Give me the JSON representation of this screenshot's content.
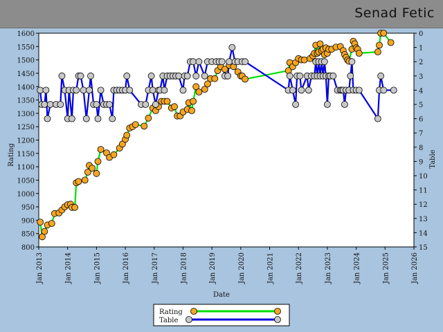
{
  "header": {
    "name": "Senad Fetic"
  },
  "chart_data": {
    "type": "line",
    "title": "Senad Fetic",
    "xlabel": "Date",
    "ylabel_left": "Rating",
    "ylabel_right": "Table",
    "x_tick_labels": [
      "Jan 2013",
      "Jan 2014",
      "Jan 2015",
      "Jan 2016",
      "Jan 2017",
      "Jan 2018",
      "Jan 2019",
      "Jan 2020",
      "Jan 2021",
      "Jan 2022",
      "Jan 2023",
      "Jan 2024",
      "Jan 2025",
      "Jan 2026"
    ],
    "xlim": [
      2013.0,
      2026.0
    ],
    "ylim_left": [
      800,
      1600
    ],
    "y_ticks_left": [
      800,
      850,
      900,
      950,
      1000,
      1050,
      1100,
      1150,
      1200,
      1250,
      1300,
      1350,
      1400,
      1450,
      1500,
      1550,
      1600
    ],
    "ylim_right": [
      15,
      0
    ],
    "y_ticks_right": [
      0,
      1,
      2,
      3,
      4,
      5,
      6,
      7,
      8,
      9,
      10,
      11,
      12,
      13,
      14,
      15
    ],
    "grid": false,
    "legend": "bottom-center",
    "colors": {
      "rating_line": "#00e000",
      "rating_marker": "#f5a623",
      "table_line": "#0000dd",
      "table_marker": "#c8c8c8"
    },
    "series": [
      {
        "name": "Rating",
        "axis": "left",
        "points": [
          [
            2013.05,
            893
          ],
          [
            2013.12,
            838
          ],
          [
            2013.2,
            858
          ],
          [
            2013.3,
            882
          ],
          [
            2013.45,
            888
          ],
          [
            2013.55,
            925
          ],
          [
            2013.7,
            927
          ],
          [
            2013.8,
            938
          ],
          [
            2013.9,
            950
          ],
          [
            2014.0,
            958
          ],
          [
            2014.1,
            960
          ],
          [
            2014.15,
            948
          ],
          [
            2014.25,
            948
          ],
          [
            2014.3,
            1040
          ],
          [
            2014.38,
            1045
          ],
          [
            2014.6,
            1050
          ],
          [
            2014.7,
            1080
          ],
          [
            2014.75,
            1105
          ],
          [
            2014.85,
            1095
          ],
          [
            2015.0,
            1075
          ],
          [
            2015.05,
            1120
          ],
          [
            2015.15,
            1165
          ],
          [
            2015.35,
            1152
          ],
          [
            2015.45,
            1135
          ],
          [
            2015.6,
            1145
          ],
          [
            2015.8,
            1170
          ],
          [
            2015.9,
            1185
          ],
          [
            2016.0,
            1203
          ],
          [
            2016.05,
            1218
          ],
          [
            2016.15,
            1245
          ],
          [
            2016.25,
            1250
          ],
          [
            2016.35,
            1258
          ],
          [
            2016.65,
            1252
          ],
          [
            2016.8,
            1282
          ],
          [
            2016.95,
            1320
          ],
          [
            2017.05,
            1310
          ],
          [
            2017.15,
            1325
          ],
          [
            2017.25,
            1345
          ],
          [
            2017.35,
            1345
          ],
          [
            2017.45,
            1345
          ],
          [
            2017.6,
            1320
          ],
          [
            2017.7,
            1325
          ],
          [
            2017.8,
            1290
          ],
          [
            2017.9,
            1290
          ],
          [
            2018.0,
            1305
          ],
          [
            2018.15,
            1315
          ],
          [
            2018.2,
            1340
          ],
          [
            2018.3,
            1310
          ],
          [
            2018.35,
            1345
          ],
          [
            2018.45,
            1400
          ],
          [
            2018.55,
            1380
          ],
          [
            2018.75,
            1390
          ],
          [
            2018.85,
            1410
          ],
          [
            2018.95,
            1430
          ],
          [
            2019.1,
            1430
          ],
          [
            2019.2,
            1460
          ],
          [
            2019.3,
            1475
          ],
          [
            2019.45,
            1465
          ],
          [
            2019.6,
            1480
          ],
          [
            2019.75,
            1475
          ],
          [
            2019.9,
            1455
          ],
          [
            2020.0,
            1440
          ],
          [
            2020.05,
            1440
          ],
          [
            2020.15,
            1428
          ],
          [
            2021.65,
            1460
          ],
          [
            2021.7,
            1490
          ],
          [
            2021.8,
            1475
          ],
          [
            2021.9,
            1490
          ],
          [
            2022.0,
            1505
          ],
          [
            2022.1,
            1500
          ],
          [
            2022.2,
            1500
          ],
          [
            2022.4,
            1505
          ],
          [
            2022.5,
            1515
          ],
          [
            2022.55,
            1525
          ],
          [
            2022.6,
            1555
          ],
          [
            2022.65,
            1525
          ],
          [
            2022.7,
            1530
          ],
          [
            2022.75,
            1560
          ],
          [
            2022.8,
            1535
          ],
          [
            2022.85,
            1540
          ],
          [
            2022.9,
            1520
          ],
          [
            2022.95,
            1545
          ],
          [
            2023.0,
            1525
          ],
          [
            2023.05,
            1540
          ],
          [
            2023.15,
            1540
          ],
          [
            2023.3,
            1548
          ],
          [
            2023.45,
            1550
          ],
          [
            2023.55,
            1535
          ],
          [
            2023.6,
            1520
          ],
          [
            2023.65,
            1510
          ],
          [
            2023.7,
            1500
          ],
          [
            2023.75,
            1495
          ],
          [
            2023.85,
            1540
          ],
          [
            2023.9,
            1570
          ],
          [
            2023.95,
            1560
          ],
          [
            2024.0,
            1545
          ],
          [
            2024.05,
            1540
          ],
          [
            2024.1,
            1525
          ],
          [
            2024.75,
            1530
          ],
          [
            2024.8,
            1555
          ],
          [
            2024.85,
            1600
          ],
          [
            2024.95,
            1600
          ],
          [
            2025.2,
            1565
          ]
        ]
      },
      {
        "name": "Table",
        "axis": "right",
        "points": [
          [
            2013.05,
            4
          ],
          [
            2013.1,
            5
          ],
          [
            2013.2,
            5
          ],
          [
            2013.25,
            4
          ],
          [
            2013.3,
            6
          ],
          [
            2013.4,
            5
          ],
          [
            2013.6,
            5
          ],
          [
            2013.75,
            5
          ],
          [
            2013.8,
            3
          ],
          [
            2013.9,
            4
          ],
          [
            2014.0,
            6
          ],
          [
            2014.05,
            4
          ],
          [
            2014.15,
            6
          ],
          [
            2014.2,
            4
          ],
          [
            2014.3,
            4
          ],
          [
            2014.38,
            3
          ],
          [
            2014.45,
            3
          ],
          [
            2014.55,
            4
          ],
          [
            2014.65,
            6
          ],
          [
            2014.75,
            4
          ],
          [
            2014.8,
            3
          ],
          [
            2014.9,
            5
          ],
          [
            2015.0,
            5
          ],
          [
            2015.05,
            6
          ],
          [
            2015.15,
            4
          ],
          [
            2015.25,
            5
          ],
          [
            2015.35,
            5
          ],
          [
            2015.45,
            5
          ],
          [
            2015.55,
            6
          ],
          [
            2015.6,
            4
          ],
          [
            2015.7,
            4
          ],
          [
            2015.8,
            4
          ],
          [
            2015.9,
            4
          ],
          [
            2016.0,
            4
          ],
          [
            2016.05,
            3
          ],
          [
            2016.15,
            4
          ],
          [
            2016.55,
            5
          ],
          [
            2016.7,
            5
          ],
          [
            2016.8,
            4
          ],
          [
            2016.9,
            3
          ],
          [
            2016.95,
            4
          ],
          [
            2017.05,
            5
          ],
          [
            2017.15,
            4
          ],
          [
            2017.2,
            4
          ],
          [
            2017.3,
            3
          ],
          [
            2017.35,
            4
          ],
          [
            2017.45,
            3
          ],
          [
            2017.55,
            3
          ],
          [
            2017.65,
            3
          ],
          [
            2017.75,
            3
          ],
          [
            2017.85,
            3
          ],
          [
            2018.0,
            4
          ],
          [
            2018.05,
            3
          ],
          [
            2018.15,
            3
          ],
          [
            2018.25,
            2
          ],
          [
            2018.35,
            2
          ],
          [
            2018.45,
            3
          ],
          [
            2018.55,
            2
          ],
          [
            2018.75,
            3
          ],
          [
            2018.85,
            2
          ],
          [
            2019.0,
            2
          ],
          [
            2019.15,
            2
          ],
          [
            2019.25,
            2
          ],
          [
            2019.35,
            2
          ],
          [
            2019.45,
            3
          ],
          [
            2019.55,
            3
          ],
          [
            2019.6,
            2
          ],
          [
            2019.7,
            1
          ],
          [
            2019.8,
            2
          ],
          [
            2019.9,
            2
          ],
          [
            2020.05,
            2
          ],
          [
            2020.15,
            2
          ],
          [
            2021.65,
            4
          ],
          [
            2021.7,
            3
          ],
          [
            2021.8,
            4
          ],
          [
            2021.9,
            5
          ],
          [
            2021.95,
            3
          ],
          [
            2022.05,
            3
          ],
          [
            2022.1,
            4
          ],
          [
            2022.3,
            3
          ],
          [
            2022.35,
            4
          ],
          [
            2022.45,
            3
          ],
          [
            2022.55,
            3
          ],
          [
            2022.6,
            2
          ],
          [
            2022.65,
            3
          ],
          [
            2022.7,
            2
          ],
          [
            2022.75,
            3
          ],
          [
            2022.8,
            2
          ],
          [
            2022.85,
            3
          ],
          [
            2022.9,
            2
          ],
          [
            2022.95,
            3
          ],
          [
            2023.0,
            5
          ],
          [
            2023.05,
            3
          ],
          [
            2023.1,
            3
          ],
          [
            2023.2,
            3
          ],
          [
            2023.35,
            4
          ],
          [
            2023.45,
            4
          ],
          [
            2023.5,
            4
          ],
          [
            2023.55,
            4
          ],
          [
            2023.6,
            5
          ],
          [
            2023.65,
            4
          ],
          [
            2023.75,
            4
          ],
          [
            2023.8,
            3
          ],
          [
            2023.85,
            2
          ],
          [
            2023.9,
            4
          ],
          [
            2024.0,
            4
          ],
          [
            2024.1,
            4
          ],
          [
            2024.75,
            6
          ],
          [
            2024.8,
            4
          ],
          [
            2024.85,
            3
          ],
          [
            2024.95,
            4
          ],
          [
            2025.3,
            4
          ]
        ]
      }
    ]
  }
}
